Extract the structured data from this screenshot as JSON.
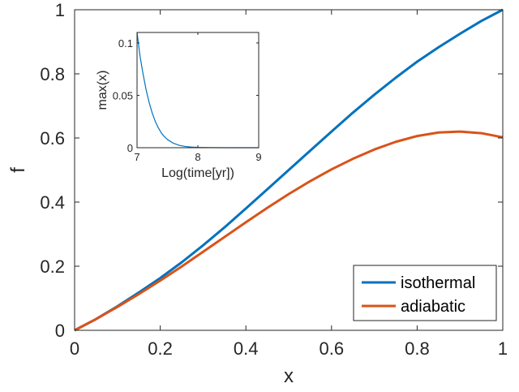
{
  "chart_data": [
    {
      "type": "line",
      "xlabel": "x",
      "ylabel": "f",
      "xlim": [
        0,
        1
      ],
      "ylim": [
        0,
        1
      ],
      "xticks": [
        "0",
        "0.2",
        "0.4",
        "0.6",
        "0.8",
        "1"
      ],
      "yticks": [
        "0",
        "0.2",
        "0.4",
        "0.6",
        "0.8",
        "1"
      ],
      "legend_position": "bottom-right",
      "grid": false,
      "series": [
        {
          "name": "isothermal",
          "color": "#0072BD",
          "x": [
            0,
            0.05,
            0.1,
            0.15,
            0.2,
            0.25,
            0.3,
            0.35,
            0.4,
            0.45,
            0.5,
            0.55,
            0.6,
            0.65,
            0.7,
            0.75,
            0.8,
            0.85,
            0.9,
            0.95,
            1.0
          ],
          "y": [
            0,
            0.035,
            0.075,
            0.118,
            0.163,
            0.212,
            0.265,
            0.321,
            0.38,
            0.44,
            0.5,
            0.56,
            0.62,
            0.679,
            0.735,
            0.788,
            0.838,
            0.883,
            0.925,
            0.965,
            1.0
          ]
        },
        {
          "name": "adiabatic",
          "color": "#D95319",
          "x": [
            0,
            0.05,
            0.1,
            0.15,
            0.2,
            0.25,
            0.3,
            0.35,
            0.4,
            0.45,
            0.5,
            0.55,
            0.6,
            0.65,
            0.7,
            0.75,
            0.8,
            0.85,
            0.9,
            0.95,
            1.0
          ],
          "y": [
            0,
            0.035,
            0.073,
            0.113,
            0.155,
            0.199,
            0.245,
            0.291,
            0.337,
            0.382,
            0.425,
            0.465,
            0.502,
            0.535,
            0.564,
            0.588,
            0.606,
            0.617,
            0.62,
            0.615,
            0.602
          ]
        }
      ]
    },
    {
      "type": "line",
      "xlabel": "Log(time[yr])",
      "ylabel": "max(x)",
      "xlim": [
        7,
        9
      ],
      "ylim": [
        0,
        0.11
      ],
      "xticks": [
        "7",
        "8",
        "9"
      ],
      "yticks": [
        "0",
        "0.05",
        "0.1"
      ],
      "grid": false,
      "series": [
        {
          "color": "#0072BD",
          "x": [
            7.0,
            7.05,
            7.1,
            7.15,
            7.2,
            7.25,
            7.3,
            7.35,
            7.4,
            7.45,
            7.5,
            7.6,
            7.7,
            7.8,
            7.9,
            8.0,
            8.2,
            8.5,
            9.0
          ],
          "y": [
            0.11,
            0.087,
            0.07,
            0.055,
            0.043,
            0.033,
            0.025,
            0.019,
            0.014,
            0.0105,
            0.0078,
            0.0042,
            0.0022,
            0.0011,
            0.0006,
            0.0003,
            0.0001,
            0.0,
            0.0
          ]
        }
      ]
    }
  ]
}
